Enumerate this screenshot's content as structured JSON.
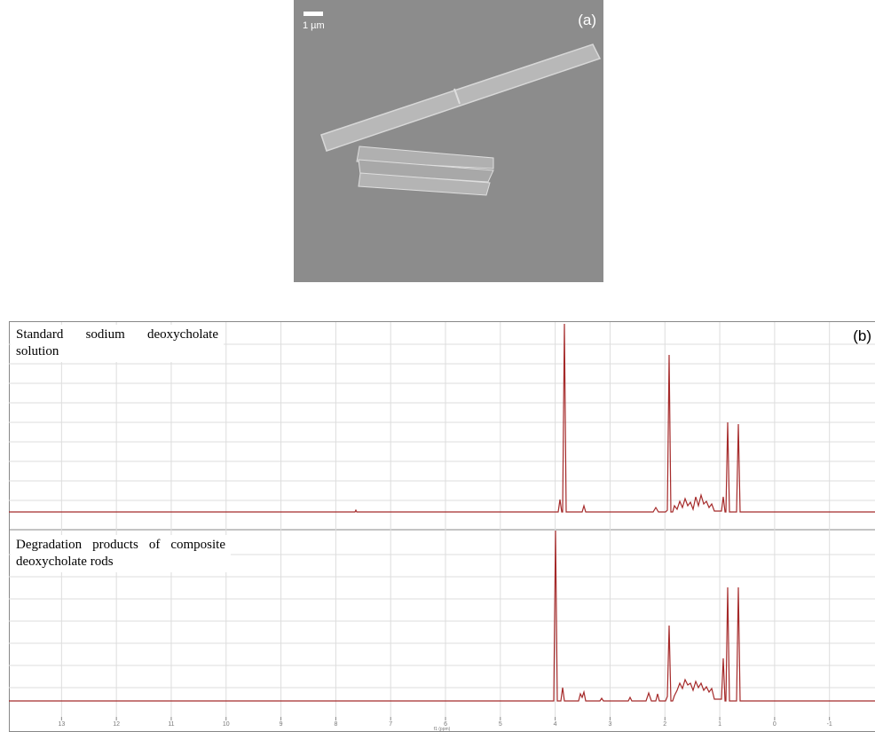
{
  "panel_a": {
    "label": "(a)",
    "scale_bar": "1 µm"
  },
  "panel_b": {
    "label": "(b)",
    "spectra": [
      {
        "label": "Standard sodium deoxycholate solution"
      },
      {
        "label": "Degradation products of composite deoxycholate rods"
      }
    ],
    "x_axis": {
      "label": "f1 (ppm)",
      "range": [
        13.96,
        -1.83
      ],
      "ticks": [
        13,
        12,
        11,
        10,
        9,
        8,
        7,
        6,
        5,
        4,
        3,
        2,
        1,
        0,
        -1
      ]
    }
  }
}
